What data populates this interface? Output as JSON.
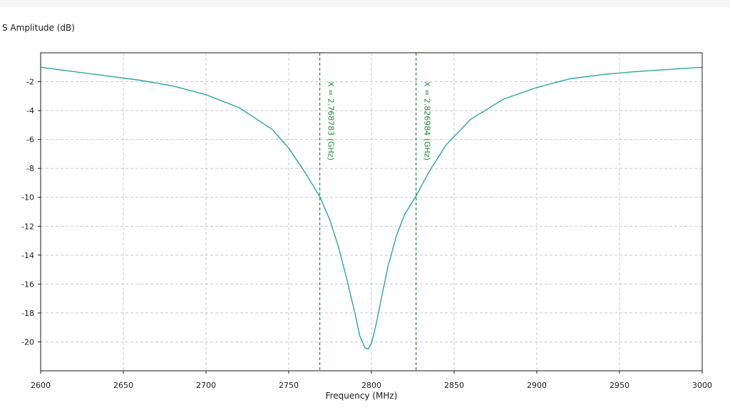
{
  "chart_data": {
    "type": "line",
    "title": "",
    "ylabel": "S Amplitude (dB)",
    "xlabel": "Frequency (MHz)",
    "xlim": [
      2600,
      3000
    ],
    "ylim": [
      -22,
      0
    ],
    "xticks": [
      2600,
      2650,
      2700,
      2750,
      2800,
      2850,
      2900,
      2950,
      3000
    ],
    "yticks": [
      -20,
      -18,
      -16,
      -14,
      -12,
      -10,
      -8,
      -6,
      -4,
      -2
    ],
    "grid": true,
    "series": [
      {
        "color": "#2aa6a0",
        "x": [
          2600,
          2620,
          2640,
          2660,
          2680,
          2700,
          2720,
          2740,
          2750,
          2760,
          2769,
          2775,
          2780,
          2785,
          2790,
          2793,
          2796,
          2798,
          2800,
          2803,
          2806,
          2810,
          2815,
          2820,
          2827,
          2835,
          2845,
          2860,
          2880,
          2900,
          2920,
          2940,
          2960,
          2980,
          3000
        ],
        "y": [
          -1.0,
          -1.3,
          -1.6,
          -1.9,
          -2.3,
          -2.9,
          -3.8,
          -5.3,
          -6.6,
          -8.3,
          -10.0,
          -11.6,
          -13.4,
          -15.6,
          -18.0,
          -19.6,
          -20.4,
          -20.5,
          -20.1,
          -18.7,
          -17.0,
          -14.8,
          -12.7,
          -11.2,
          -9.9,
          -8.2,
          -6.4,
          -4.6,
          -3.2,
          -2.4,
          -1.8,
          -1.5,
          -1.3,
          -1.15,
          -1.0
        ]
      }
    ],
    "markers": [
      {
        "x": 2768.783,
        "label": "X = 2.768783 (GHz)",
        "color": "#1f8a3c"
      },
      {
        "x": 2826.984,
        "label": "X = 2.826984 (GHz)",
        "color": "#1f8a3c"
      }
    ]
  }
}
